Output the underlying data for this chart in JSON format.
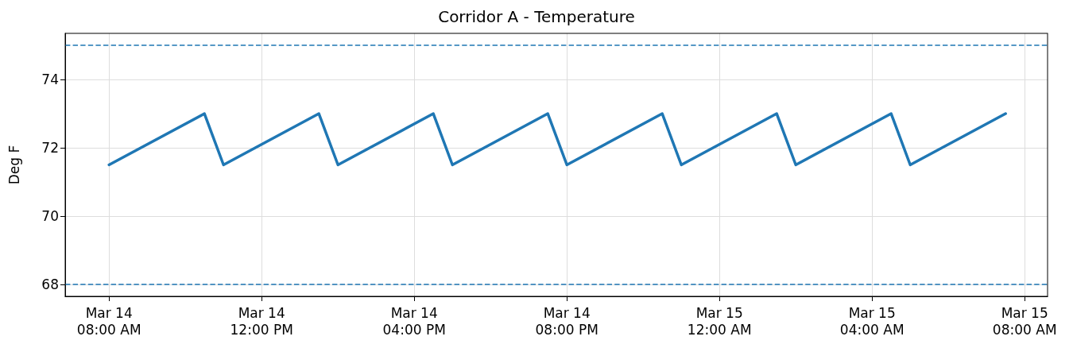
{
  "chart_data": {
    "type": "line",
    "title": "Corridor A - Temperature",
    "ylabel": "Deg F",
    "x": [
      "--03-14T08:00",
      "--03-14T10:30",
      "--03-14T11:00",
      "--03-14T13:30",
      "--03-14T14:00",
      "--03-14T16:30",
      "--03-14T17:00",
      "--03-14T19:30",
      "--03-14T20:00",
      "--03-14T22:30",
      "--03-14T23:00",
      "--03-15T01:30",
      "--03-15T02:00",
      "--03-15T04:30",
      "--03-15T05:00",
      "--03-15T07:30"
    ],
    "series": [
      {
        "color": "#1f77b4",
        "values": [
          71.5,
          73,
          71.5,
          73,
          71.5,
          73,
          71.5,
          73,
          71.5,
          73,
          71.5,
          73,
          71.5,
          73,
          71.5,
          73
        ]
      }
    ],
    "xlim": [
      "--03-14T06:51",
      "--03-15T08:36"
    ],
    "xticks": [
      {
        "value": "--03-14T08:00",
        "label": "Mar 14\n08:00 AM"
      },
      {
        "value": "--03-14T12:00",
        "label": "Mar 14\n12:00 PM"
      },
      {
        "value": "--03-14T16:00",
        "label": "Mar 14\n04:00 PM"
      },
      {
        "value": "--03-14T20:00",
        "label": "Mar 14\n08:00 PM"
      },
      {
        "value": "--03-15T00:00",
        "label": "Mar 15\n12:00 AM"
      },
      {
        "value": "--03-15T04:00",
        "label": "Mar 15\n04:00 AM"
      },
      {
        "value": "--03-15T08:00",
        "label": "Mar 15\n08:00 AM"
      }
    ],
    "ylim": [
      67.65,
      75.35
    ],
    "yticks": [
      68,
      70,
      72,
      74
    ],
    "ref_lines": [
      {
        "axis": "y",
        "value": 75,
        "color": "#1f77b4",
        "line_style": "dashed"
      },
      {
        "axis": "y",
        "value": 68,
        "color": "#1f77b4",
        "line_style": "dashed"
      }
    ],
    "grid": true,
    "marker": "none",
    "line_style": "solid"
  }
}
